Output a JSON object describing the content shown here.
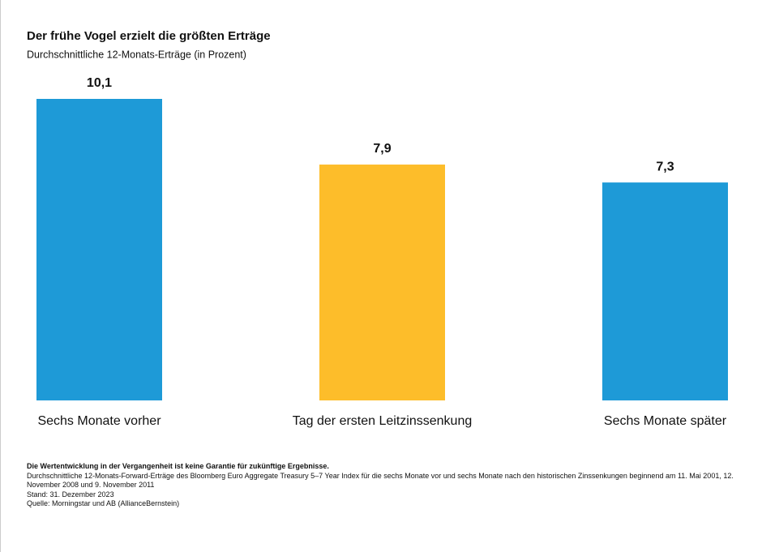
{
  "chart_data": {
    "type": "bar",
    "title": "Der frühe Vogel erzielt die größten Erträge",
    "subtitle": "Durchschnittliche 12-Monats-Erträge (in Prozent)",
    "categories": [
      "Sechs Monate vorher",
      "Tag der ersten Leitzinssenkung",
      "Sechs Monate später"
    ],
    "values": [
      10.1,
      7.9,
      7.3
    ],
    "value_labels": [
      "10,1",
      "7,9",
      "7,3"
    ],
    "colors": [
      "#1e9ad7",
      "#fdbd2a",
      "#1e9ad7"
    ],
    "notes": [
      "Die Wertentwicklung in der Vergangenheit ist keine Garantie für zukünftige Ergebnisse.",
      "Durchschnittliche 12-Monats-Forward-Erträge des Bloomberg Euro Aggregate Treasury 5–7 Year Index für die sechs Monate vor und sechs Monate nach den historischen Zinssenkungen beginnend am 11. Mai 2001, 12. November 2008 und 9. November 2011",
      "Stand: 31. Dezember 2023",
      "Quelle: Morningstar und AB (AllianceBernstein)"
    ]
  }
}
